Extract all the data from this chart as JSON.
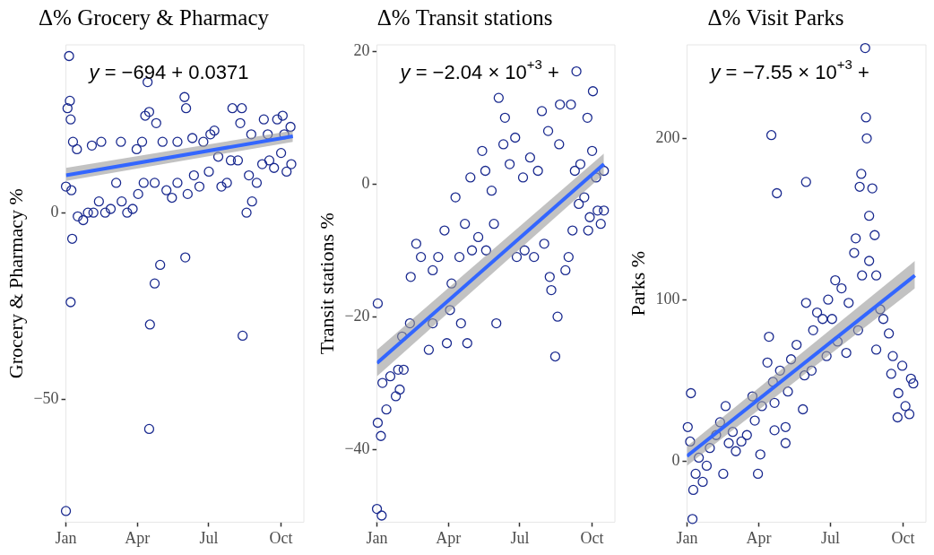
{
  "chart_data": [
    {
      "type": "scatter",
      "title": "Δ% Grocery & Pharmacy",
      "ylabel": "Grocery & Pharmacy %",
      "xlim": [
        "--01-01",
        "--10-30"
      ],
      "xticks": [
        {
          "value": "--01-01",
          "label": "Jan"
        },
        {
          "value": "--04-01",
          "label": "Apr"
        },
        {
          "value": "--07-01",
          "label": "Jul"
        },
        {
          "value": "--10-01",
          "label": "Oct"
        }
      ],
      "ylim": [
        -83,
        45
      ],
      "yticks": [
        -50,
        0
      ],
      "grid": false,
      "legend": false,
      "marker": "circle",
      "annotations": [
        "y = −694 + 0.0371"
      ],
      "series": [
        {
          "type": "scatter",
          "color": "#1a2a8f",
          "x": [
            "--01-05",
            "--01-06",
            "--01-03",
            "--01-07",
            "--01-01",
            "--01-08",
            "--01-09",
            "--01-07",
            "--01-01",
            "--01-10",
            "--01-15",
            "--01-16",
            "--01-23",
            "--01-29",
            "--02-05",
            "--02-03",
            "--02-15",
            "--02-12",
            "--02-20",
            "--02-27",
            "--03-05",
            "--03-11",
            "--03-12",
            "--03-19",
            "--03-26",
            "--04-02",
            "--03-31",
            "--04-07",
            "--04-11",
            "--04-14",
            "--04-16",
            "--04-09",
            "--04-17",
            "--04-16",
            "--04-23",
            "--04-30",
            "--04-25",
            "--04-23",
            "--05-03",
            "--05-08",
            "--05-15",
            "--05-22",
            "--05-22",
            "--05-31",
            "--06-02",
            "--06-01",
            "--06-04",
            "--06-10",
            "--06-12",
            "--06-19",
            "--06-24",
            "--07-01",
            "--07-03",
            "--07-08",
            "--07-13",
            "--07-17",
            "--07-24",
            "--07-29",
            "--07-31",
            "--08-07",
            "--08-10",
            "--08-12",
            "--08-13",
            "--08-18",
            "--08-25",
            "--08-21",
            "--08-24",
            "--08-31",
            "--09-07",
            "--09-09",
            "--09-14",
            "--09-16",
            "--09-22",
            "--09-26",
            "--10-01",
            "--10-03",
            "--10-05",
            "--10-08",
            "--10-13",
            "--10-14"
          ],
          "values": [
            42,
            30,
            28,
            25,
            7,
            6,
            -7,
            -24,
            -80,
            19,
            17,
            -1,
            -2,
            0,
            0,
            18,
            19,
            3,
            0,
            1,
            8,
            19,
            3,
            0,
            1,
            5,
            17,
            19,
            26,
            35,
            27,
            8,
            -30,
            -58,
            -19,
            -14,
            24,
            8,
            19,
            6,
            4,
            8,
            19,
            31,
            28,
            -12,
            5,
            20,
            10,
            7,
            19,
            11,
            21,
            22,
            15,
            7,
            8,
            14,
            28,
            14,
            24,
            28,
            -33,
            0,
            3,
            10,
            21,
            8,
            13,
            25,
            21,
            14,
            12,
            25,
            16,
            26,
            21,
            11,
            23,
            13
          ]
        },
        {
          "type": "line",
          "color": "#3366ff",
          "x": [
            "--01-01",
            "--10-16"
          ],
          "marker": "none",
          "values": [
            10,
            20.5
          ],
          "lower": [
            8.5,
            19
          ],
          "upper": [
            12,
            22
          ]
        }
      ]
    },
    {
      "type": "scatter",
      "title": "Δ% Transit stations",
      "ylabel": "Transit stations %",
      "xlim": [
        "--01-01",
        "--10-30"
      ],
      "xticks": [
        {
          "value": "--01-01",
          "label": "Jan"
        },
        {
          "value": "--04-01",
          "label": "Apr"
        },
        {
          "value": "--07-01",
          "label": "Jul"
        },
        {
          "value": "--10-01",
          "label": "Oct"
        }
      ],
      "ylim": [
        -51,
        21
      ],
      "yticks": [
        -40,
        -20,
        0,
        20
      ],
      "grid": false,
      "legend": false,
      "marker": "circle",
      "annotations": [
        "y = −2.04 × 10$^{+3}$ +"
      ],
      "series": [
        {
          "type": "scatter",
          "color": "#1a2a8f",
          "x": [
            "--01-01",
            "--01-07",
            "--01-02",
            "--01-02",
            "--01-06",
            "--01-08",
            "--01-13",
            "--01-18",
            "--01-25",
            "--01-30",
            "--01-28",
            "--02-04",
            "--02-02",
            "--02-12",
            "--02-13",
            "--02-20",
            "--02-26",
            "--03-07",
            "--03-12",
            "--03-12",
            "--03-19",
            "--03-27",
            "--03-30",
            "--04-03",
            "--04-05",
            "--04-10",
            "--04-15",
            "--04-17",
            "--04-22",
            "--04-25",
            "--04-29",
            "--05-01",
            "--05-09",
            "--05-14",
            "--05-18",
            "--05-19",
            "--05-26",
            "--05-29",
            "--06-01",
            "--06-04",
            "--06-10",
            "--06-12",
            "--06-18",
            "--06-25",
            "--06-27",
            "--07-05",
            "--07-07",
            "--07-14",
            "--07-19",
            "--07-24",
            "--07-29",
            "--08-01",
            "--08-06",
            "--08-08",
            "--08-10",
            "--08-15",
            "--08-18",
            "--08-20",
            "--08-21",
            "--08-28",
            "--09-01",
            "--09-04",
            "--09-06",
            "--09-09",
            "--09-11",
            "--09-14",
            "--09-16",
            "--09-21",
            "--09-25",
            "--09-26",
            "--09-28",
            "--10-01",
            "--10-02",
            "--10-06",
            "--10-08",
            "--10-12",
            "--10-16",
            "--10-16"
          ],
          "values": [
            -49,
            -50,
            -18,
            -36,
            -38,
            -30,
            -34,
            -29,
            -32,
            -31,
            -28,
            -28,
            -23,
            -21,
            -14,
            -9,
            -11,
            -25,
            -21,
            -13,
            -11,
            -7,
            -24,
            -19,
            -15,
            -2,
            -11,
            -21,
            -6,
            -24,
            1,
            -10,
            -8,
            5,
            2,
            -10,
            -1,
            -6,
            -21,
            13,
            6,
            10,
            3,
            7,
            -11,
            1,
            -10,
            4,
            -11,
            2,
            11,
            -9,
            8,
            -14,
            -16,
            -26,
            -20,
            6,
            12,
            -13,
            -11,
            12,
            -7,
            2,
            17,
            -3,
            3,
            -2,
            10,
            -7,
            -5,
            5,
            14,
            1,
            -4,
            -6,
            2,
            -4
          ]
        },
        {
          "type": "line",
          "color": "#3366ff",
          "x": [
            "--01-01",
            "--10-16"
          ],
          "marker": "none",
          "values": [
            -27,
            3
          ],
          "lower": [
            -29,
            1.5
          ],
          "upper": [
            -25,
            4.6
          ]
        }
      ]
    },
    {
      "type": "scatter",
      "title": "Δ% Visit Parks",
      "ylabel": "Parks %",
      "xlim": [
        "--01-01",
        "--10-30"
      ],
      "xticks": [
        {
          "value": "--01-01",
          "label": "Jan"
        },
        {
          "value": "--04-01",
          "label": "Apr"
        },
        {
          "value": "--07-01",
          "label": "Jul"
        },
        {
          "value": "--10-01",
          "label": "Oct"
        }
      ],
      "ylim": [
        -38,
        258
      ],
      "yticks": [
        0,
        100,
        200
      ],
      "grid": false,
      "legend": false,
      "marker": "circle",
      "annotations": [
        "y = −7.55 × 10$^{+3}$ +"
      ],
      "series": [
        {
          "type": "scatter",
          "color": "#1a2a8f",
          "x": [
            "--01-08",
            "--01-09",
            "--01-06",
            "--01-02",
            "--01-05",
            "--01-12",
            "--01-16",
            "--01-21",
            "--01-26",
            "--01-30",
            "--02-07",
            "--02-12",
            "--02-16",
            "--02-19",
            "--02-23",
            "--02-28",
            "--03-03",
            "--03-10",
            "--03-17",
            "--03-24",
            "--03-27",
            "--03-31",
            "--04-03",
            "--04-05",
            "--04-12",
            "--04-14",
            "--04-17",
            "--04-19",
            "--04-21",
            "--04-21",
            "--04-24",
            "--04-28",
            "--05-05",
            "--05-05",
            "--05-08",
            "--05-12",
            "--05-19",
            "--05-27",
            "--05-29",
            "--05-31",
            "--05-31",
            "--06-07",
            "--06-09",
            "--06-14",
            "--06-21",
            "--06-26",
            "--06-28",
            "--07-03",
            "--07-07",
            "--07-10",
            "--07-15",
            "--07-21",
            "--07-24",
            "--07-31",
            "--08-02",
            "--08-05",
            "--08-07",
            "--08-09",
            "--08-10",
            "--08-14",
            "--08-15",
            "--08-16",
            "--08-19",
            "--08-19",
            "--08-23",
            "--08-26",
            "--08-28",
            "--08-28",
            "--09-02",
            "--09-06",
            "--09-13",
            "--09-16",
            "--09-18",
            "--09-24",
            "--09-25",
            "--09-30",
            "--10-04",
            "--10-09",
            "--10-11",
            "--10-14"
          ],
          "values": [
            -36,
            -18,
            42,
            21,
            12,
            -8,
            2,
            -13,
            -3,
            8,
            16,
            24,
            -8,
            34,
            11,
            18,
            6,
            12,
            16,
            40,
            25,
            -8,
            4,
            34,
            61,
            77,
            202,
            49,
            36,
            19,
            166,
            56,
            21,
            11,
            43,
            63,
            72,
            32,
            53,
            173,
            98,
            56,
            81,
            92,
            88,
            65,
            100,
            88,
            112,
            74,
            107,
            67,
            98,
            129,
            138,
            81,
            170,
            178,
            115,
            256,
            213,
            200,
            152,
            124,
            169,
            140,
            115,
            69,
            94,
            88,
            79,
            54,
            65,
            27,
            42,
            59,
            34,
            29,
            51,
            48
          ]
        },
        {
          "type": "line",
          "color": "#3366ff",
          "x": [
            "--01-01",
            "--10-16"
          ],
          "marker": "none",
          "values": [
            3,
            115
          ],
          "lower": [
            -3,
            107
          ],
          "upper": [
            9,
            124
          ]
        }
      ]
    }
  ]
}
